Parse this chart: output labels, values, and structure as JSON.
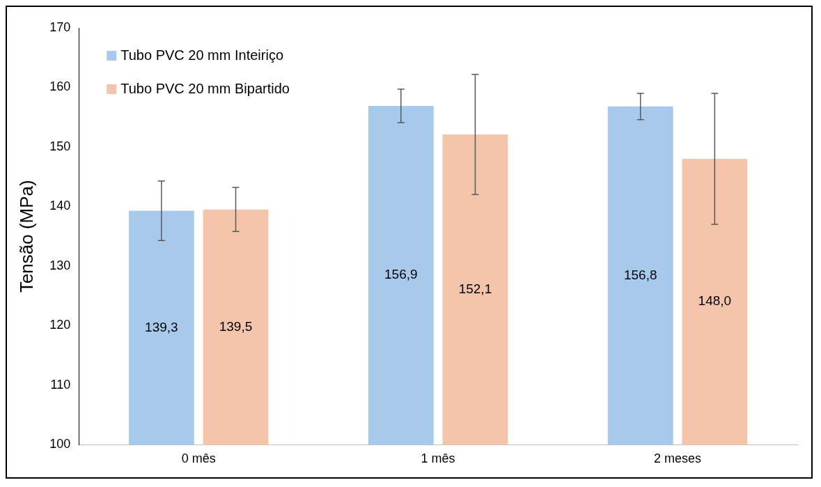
{
  "chart_data": {
    "type": "bar",
    "ylabel": "Tensão (MPa)",
    "categories": [
      "0 mês",
      "1 mês",
      "2 meses"
    ],
    "series": [
      {
        "name": "Tubo PVC 20 mm Inteiriço",
        "color": "#a7c9eb",
        "values": [
          139.3,
          156.9,
          156.8
        ],
        "errors": [
          5.0,
          2.8,
          2.2
        ],
        "value_labels": [
          "139,3",
          "156,9",
          "156,8"
        ]
      },
      {
        "name": "Tubo PVC 20 mm Bipartido",
        "color": "#f5c5ab",
        "values": [
          139.5,
          152.1,
          148.0
        ],
        "errors": [
          3.7,
          10.1,
          11.0
        ],
        "value_labels": [
          "139,5",
          "152,1",
          "148,0"
        ]
      }
    ],
    "ylim": [
      100,
      170
    ],
    "yticks": [
      100,
      110,
      120,
      130,
      140,
      150,
      160,
      170
    ],
    "grid": false,
    "legend": "top left"
  }
}
